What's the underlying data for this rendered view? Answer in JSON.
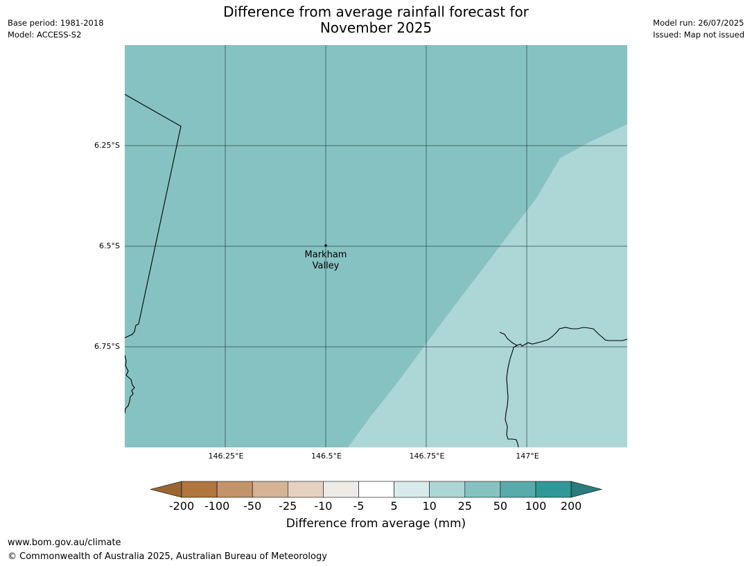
{
  "title_line1": "Difference from average rainfall forecast for",
  "title_line2": "November 2025",
  "meta_left": {
    "base_period": "Base period: 1981-2018",
    "model": "Model: ACCESS-S2"
  },
  "meta_right": {
    "model_run": "Model run: 26/07/2025",
    "issued": "Issued: Map not issued"
  },
  "map": {
    "latitudes": [
      "6.25°S",
      "6.5°S",
      "6.75°S"
    ],
    "longitudes": [
      "146.25°E",
      "146.5°E",
      "146.75°E",
      "147°E"
    ],
    "place_line1": "Markham",
    "place_line2": "Valley",
    "region_colors": {
      "wet": "#86c2c1",
      "slightly_wet": "#add6d6"
    }
  },
  "colorbar": {
    "ticks": [
      "-200",
      "-100",
      "-50",
      "-25",
      "-10",
      "-5",
      "5",
      "10",
      "25",
      "50",
      "100",
      "200"
    ],
    "colors": [
      "#9b6533",
      "#b0763d",
      "#c39369",
      "#d5b394",
      "#e5d1c0",
      "#eeebe7",
      "#ffffff",
      "#d7ebea",
      "#add6d6",
      "#86c2c1",
      "#59aaaa",
      "#319898",
      "#2a7b7b"
    ],
    "title": "Difference from average (mm)"
  },
  "footer": {
    "url": "www.bom.gov.au/climate",
    "copyright": "© Commonwealth of Australia 2025, Australian Bureau of Meteorology"
  }
}
